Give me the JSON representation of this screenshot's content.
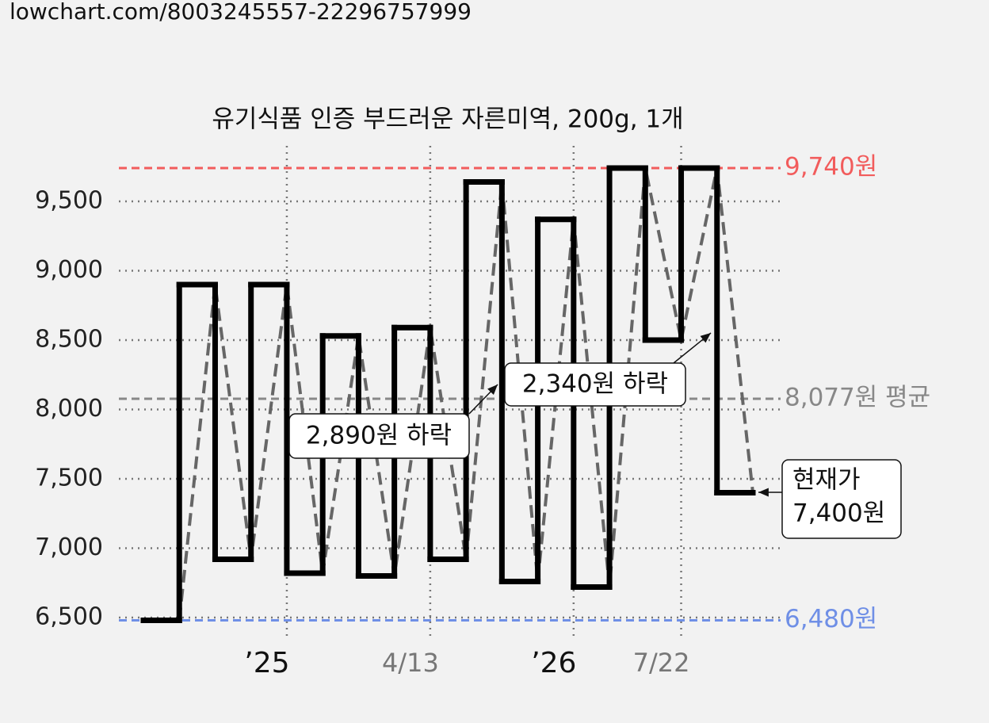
{
  "url": "lowchart.com/8003245557-22296757999",
  "chart_data": {
    "type": "step",
    "title": "유기식품 인증 부드러운 자른미역, 200g, 1개",
    "x": [
      0,
      1,
      2,
      3,
      4,
      5,
      6,
      7,
      8,
      9,
      10,
      11,
      12,
      13,
      14,
      15,
      16
    ],
    "series": [
      {
        "color": "#000000",
        "values": [
          6480,
          8900,
          6920,
          8900,
          6820,
          8530,
          6800,
          8590,
          6920,
          9640,
          6760,
          9370,
          6720,
          9740,
          8500,
          9740,
          7400
        ]
      }
    ],
    "trend_color": "#666666",
    "xlim": [
      0,
      17
    ],
    "xticks": [
      {
        "value": 4,
        "label": "’25",
        "major": true
      },
      {
        "value": 8,
        "label": "4/13",
        "major": false
      },
      {
        "value": 12,
        "label": "’26",
        "major": true
      },
      {
        "value": 15,
        "label": "7/22",
        "major": false
      }
    ],
    "ylim": [
      6300,
      9900
    ],
    "yticks": [
      {
        "value": 6500,
        "label": "6,500"
      },
      {
        "value": 7000,
        "label": "7,000"
      },
      {
        "value": 7500,
        "label": "7,500"
      },
      {
        "value": 8000,
        "label": "8,000"
      },
      {
        "value": 8500,
        "label": "8,500"
      },
      {
        "value": 9000,
        "label": "9,000"
      },
      {
        "value": 9500,
        "label": "9,500"
      }
    ],
    "grid": true,
    "reference_lines": [
      {
        "value": 9740,
        "label": "9,740원",
        "color": "#f25c5c"
      },
      {
        "value": 8077,
        "label": "8,077원 평균",
        "color": "#888888"
      },
      {
        "value": 6480,
        "label": "6,480원",
        "color": "#6f8fe6"
      }
    ],
    "annotations": [
      {
        "text": "2,890원 하락"
      },
      {
        "text": "2,340원 하락"
      },
      {
        "text": "현재가",
        "text2": "7,400원"
      }
    ]
  }
}
